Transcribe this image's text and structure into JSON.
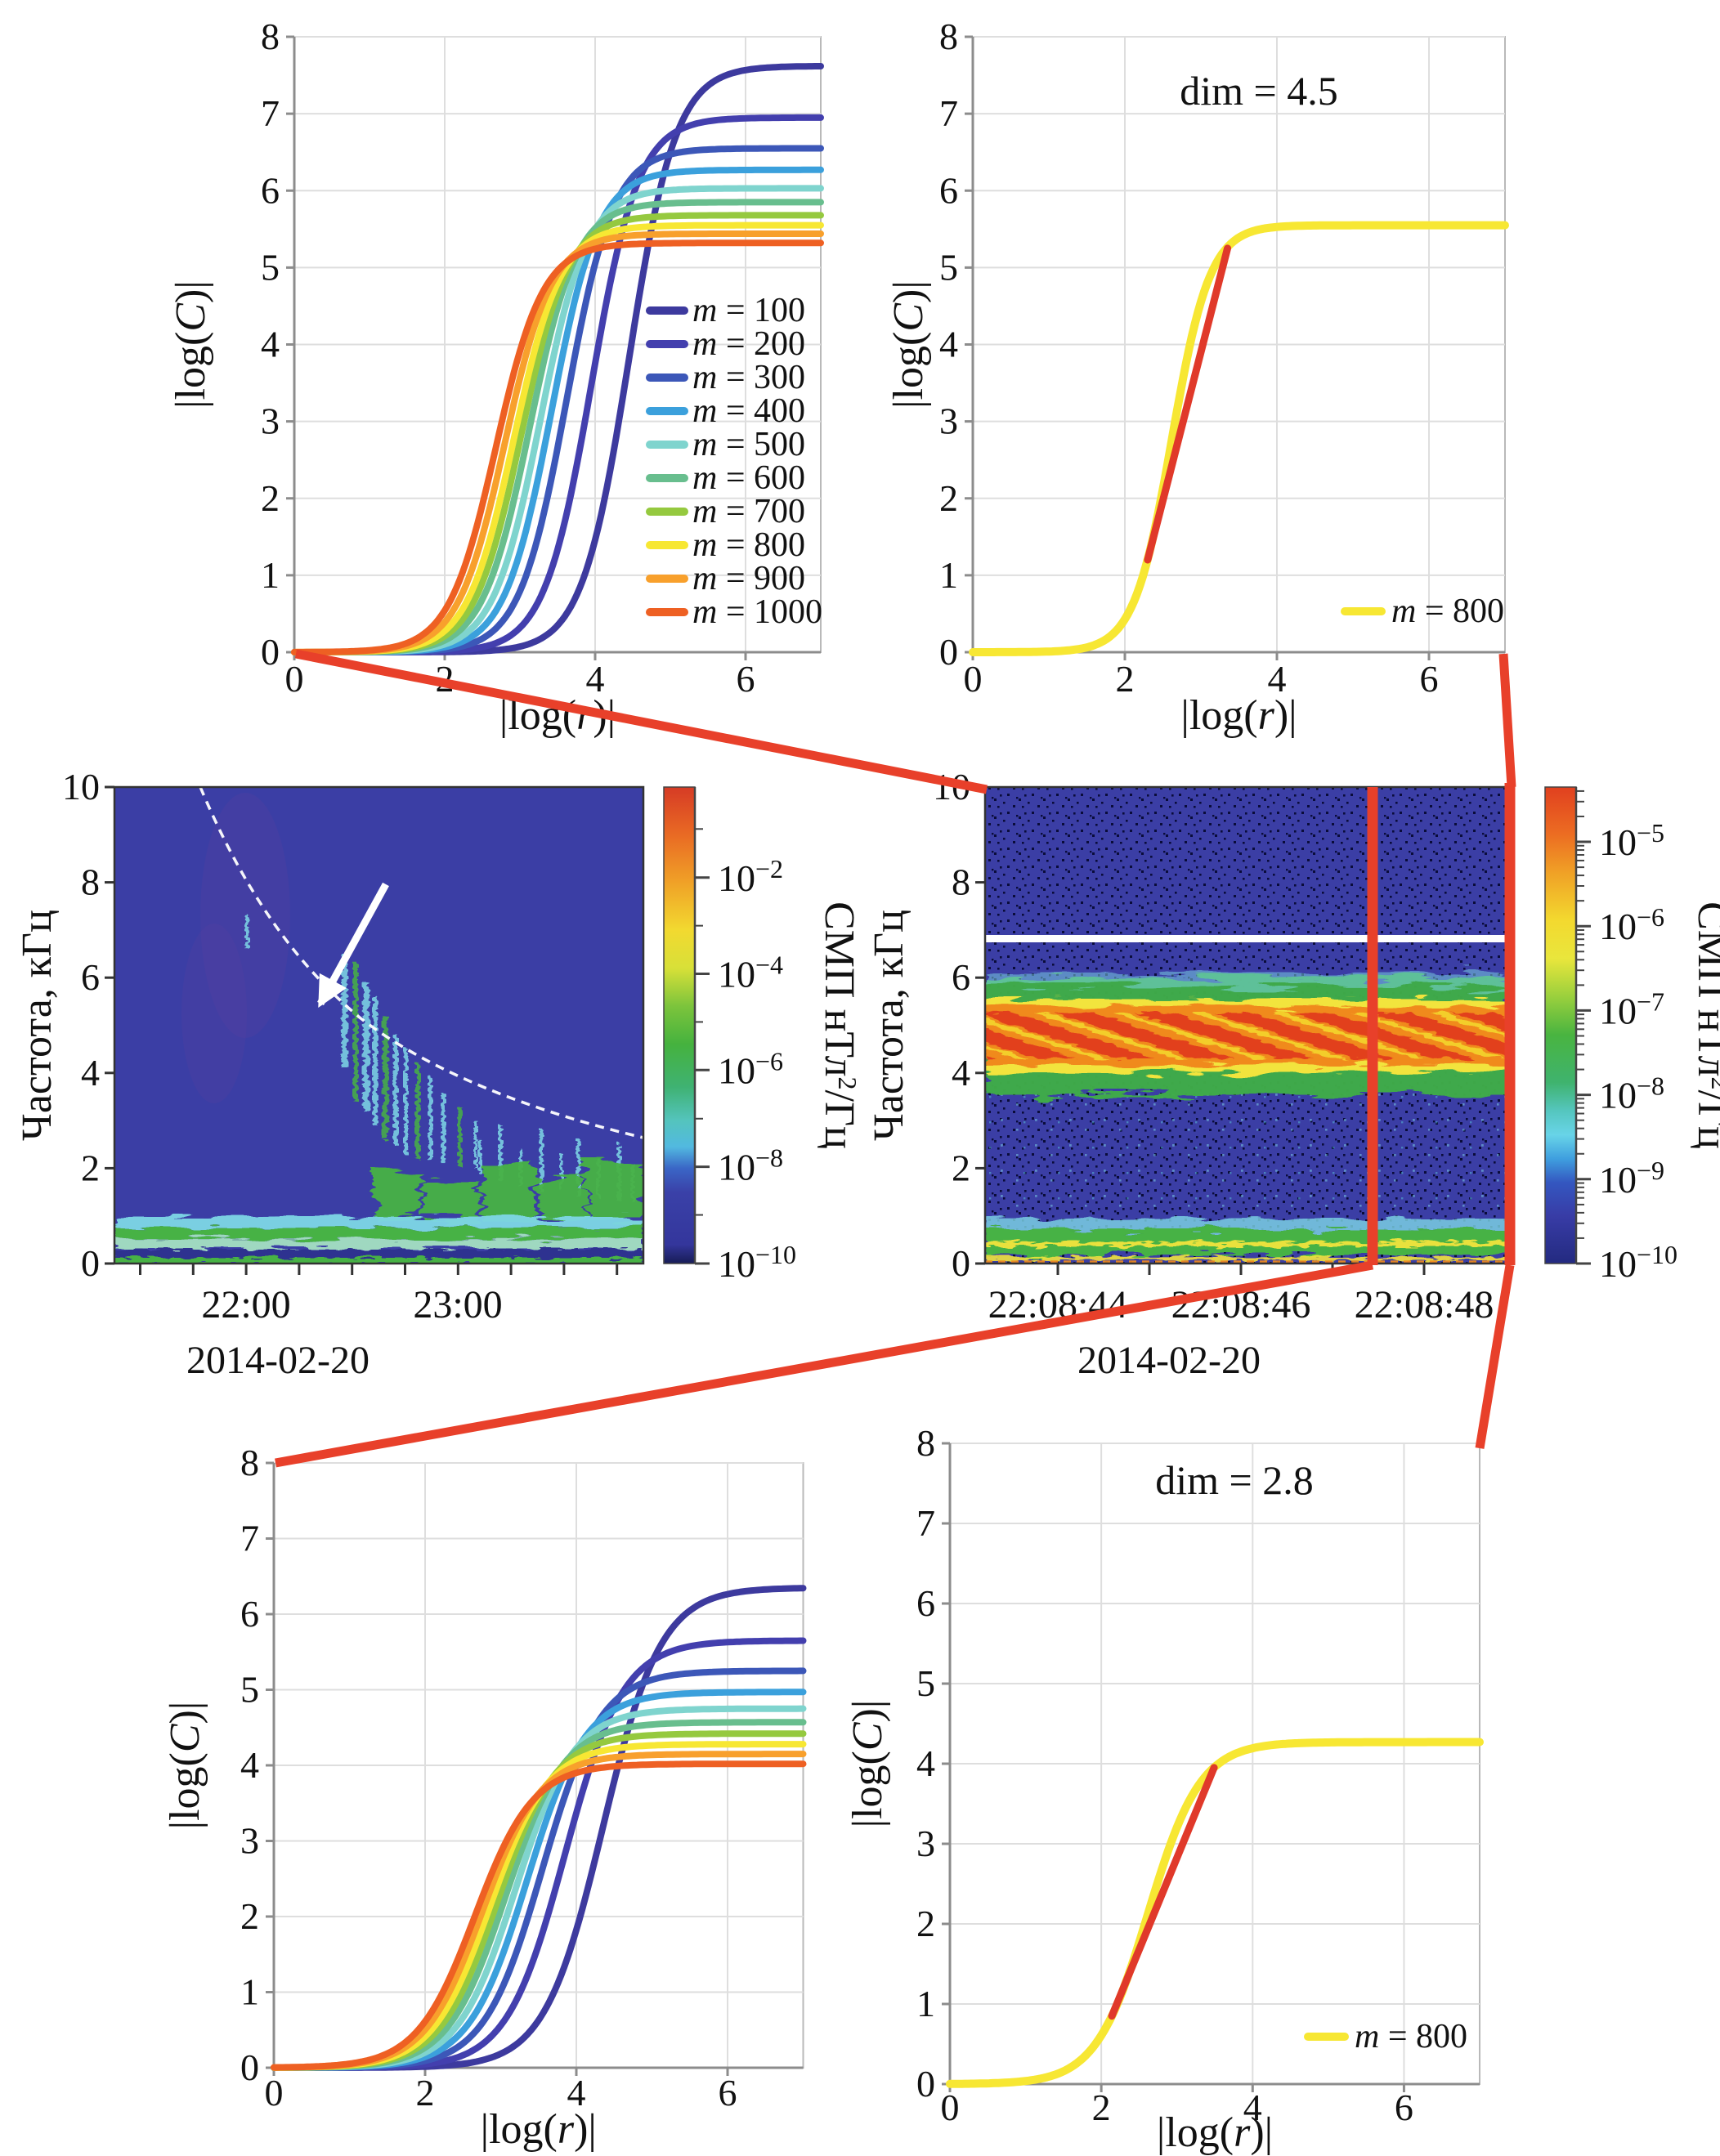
{
  "colors": {
    "connector_red": "#e8402a",
    "fit_red": "#e0392a",
    "grid": "#dedede",
    "frame": "#b9b9b9",
    "axis": "#8c8c8c",
    "spectro_frame": "#333333",
    "text": "#111111",
    "spectro_bg": "#3b3ea5",
    "band_green": "#46b244",
    "band_pale_green": "#9fd8c0",
    "band_cyan": "#7ed7e6",
    "band_yellow": "#f2e43c",
    "band_orange": "#f08a1e",
    "band_red": "#e2401c",
    "navy_stripe": "#2e3090",
    "white": "#ffffff"
  },
  "axis_labels": {
    "x": {
      "pre": "|log(",
      "var": "r",
      "post": ")|"
    },
    "y": {
      "pre": "|log(",
      "var": "C",
      "post": ")|"
    }
  },
  "chart_data": [
    {
      "id": "corr-all-m-top",
      "type": "line",
      "xlabel": "|log(r)|",
      "ylabel": "|log(C)|",
      "xlim": [
        0,
        7
      ],
      "ylim": [
        0,
        8
      ],
      "xticks": [
        "0",
        "2",
        "4",
        "6"
      ],
      "yticks": [
        "0",
        "1",
        "2",
        "3",
        "4",
        "5",
        "6",
        "7",
        "8"
      ],
      "legend": {
        "var": "m",
        "position": "right-middle"
      },
      "series": [
        {
          "m": 100,
          "rest": " = 100",
          "color": "#3d3a9e",
          "plateau": 7.62,
          "x0": 4.45,
          "k": 3.2
        },
        {
          "m": 200,
          "rest": " = 200",
          "color": "#433fae",
          "plateau": 6.95,
          "x0": 3.95,
          "k": 3.2
        },
        {
          "m": 300,
          "rest": " = 300",
          "color": "#3c57b8",
          "plateau": 6.55,
          "x0": 3.62,
          "k": 3.2
        },
        {
          "m": 400,
          "rest": " = 400",
          "color": "#3ba0dc",
          "plateau": 6.27,
          "x0": 3.42,
          "k": 3.2
        },
        {
          "m": 500,
          "rest": " = 500",
          "color": "#7fd4ce",
          "plateau": 6.03,
          "x0": 3.27,
          "k": 3.2
        },
        {
          "m": 600,
          "rest": " = 600",
          "color": "#68be8e",
          "plateau": 5.85,
          "x0": 3.13,
          "k": 3.2
        },
        {
          "m": 700,
          "rest": " = 700",
          "color": "#95c93f",
          "plateau": 5.68,
          "x0": 3.02,
          "k": 3.2
        },
        {
          "m": 800,
          "rest": " = 800",
          "color": "#f7e733",
          "plateau": 5.55,
          "x0": 2.92,
          "k": 3.2
        },
        {
          "m": 900,
          "rest": " = 900",
          "color": "#f8a02c",
          "plateau": 5.44,
          "x0": 2.8,
          "k": 3.2
        },
        {
          "m": 1000,
          "rest": " = 1000",
          "color": "#ee6023",
          "plateau": 5.32,
          "x0": 2.68,
          "k": 3.2
        }
      ]
    },
    {
      "id": "corr-m800-top",
      "type": "line",
      "annotation": "dim = 4.5",
      "xlabel": "|log(r)|",
      "ylabel": "|log(C)|",
      "xlim": [
        0,
        7
      ],
      "ylim": [
        0,
        8
      ],
      "xticks": [
        "0",
        "2",
        "4",
        "6"
      ],
      "yticks": [
        "0",
        "1",
        "2",
        "3",
        "4",
        "5",
        "6",
        "7",
        "8"
      ],
      "legend": {
        "var": "m",
        "position": "bottom-right"
      },
      "series": [
        {
          "m": 800,
          "rest": " = 800",
          "color": "#f7e733",
          "plateau": 5.55,
          "x0": 2.62,
          "k": 4.0
        }
      ],
      "fit": {
        "x1": 2.3,
        "y1": 1.2,
        "x2": 3.35,
        "y2": 5.25,
        "dim": 4.5,
        "color": "#e0392a"
      }
    },
    {
      "id": "spectrogram-overview",
      "type": "heatmap",
      "ylabel": "Частота, кГц",
      "ylim": [
        0,
        10
      ],
      "yticks": [
        "0",
        "2",
        "4",
        "6",
        "8",
        "10"
      ],
      "xtick_labels": [
        "22:00",
        "23:00"
      ],
      "date": "2014-02-20",
      "colorbar": {
        "base": "10",
        "exponents": [
          "−2",
          "−4",
          "−6",
          "−8",
          "−10"
        ],
        "title": {
          "pre": "СМП нТл",
          "sup": "2",
          "post": "/Гц"
        },
        "stops": [
          [
            0,
            "#d63b25"
          ],
          [
            0.1,
            "#e96a24"
          ],
          [
            0.2,
            "#f0a127"
          ],
          [
            0.3,
            "#f2d930"
          ],
          [
            0.38,
            "#d8e038"
          ],
          [
            0.46,
            "#7cc43c"
          ],
          [
            0.54,
            "#45b23e"
          ],
          [
            0.63,
            "#3fb273"
          ],
          [
            0.7,
            "#54c4bd"
          ],
          [
            0.755,
            "#52b9e0"
          ],
          [
            0.8,
            "#3a66c6"
          ],
          [
            0.85,
            "#3a41a8"
          ],
          [
            0.96,
            "#34369c"
          ],
          [
            1,
            "#171c55"
          ]
        ]
      }
    },
    {
      "id": "spectrogram-zoom",
      "type": "heatmap",
      "ylabel": "Частота, кГц",
      "ylim": [
        0,
        10
      ],
      "yticks": [
        "0",
        "2",
        "4",
        "6",
        "8",
        "10"
      ],
      "xtick_labels": [
        "22:08:44",
        "22:08:46",
        "22:08:48"
      ],
      "date": "2014-02-20",
      "colorbar": {
        "base": "10",
        "exponents": [
          "−5",
          "−6",
          "−7",
          "−8",
          "−9",
          "−10"
        ],
        "title": {
          "pre": "СМП нТл",
          "sup": "2",
          "post": "/Гц"
        },
        "stops": [
          [
            0,
            "#e1401f"
          ],
          [
            0.1,
            "#ec6d22"
          ],
          [
            0.18,
            "#f0a126"
          ],
          [
            0.28,
            "#f3d92f"
          ],
          [
            0.36,
            "#e9e63c"
          ],
          [
            0.44,
            "#9ad03d"
          ],
          [
            0.52,
            "#49b440"
          ],
          [
            0.62,
            "#3fb36e"
          ],
          [
            0.68,
            "#55c6bf"
          ],
          [
            0.73,
            "#68d4e8"
          ],
          [
            0.78,
            "#3f9fdf"
          ],
          [
            0.83,
            "#3457c0"
          ],
          [
            0.9,
            "#383ca6"
          ],
          [
            1,
            "#232a80"
          ]
        ]
      }
    },
    {
      "id": "corr-all-m-bottom",
      "type": "line",
      "xlabel": "|log(r)|",
      "ylabel": "|log(C)|",
      "xlim": [
        0,
        7
      ],
      "ylim": [
        0,
        8
      ],
      "xticks": [
        "0",
        "2",
        "4",
        "6"
      ],
      "yticks": [
        "0",
        "1",
        "2",
        "3",
        "4",
        "5",
        "6",
        "7",
        "8"
      ],
      "series": [
        {
          "m": 100,
          "rest": " = 100",
          "color": "#3d3a9e",
          "plateau": 6.35,
          "x0": 4.35,
          "k": 2.6
        },
        {
          "m": 200,
          "rest": " = 200",
          "color": "#433fae",
          "plateau": 5.65,
          "x0": 3.85,
          "k": 2.6
        },
        {
          "m": 300,
          "rest": " = 300",
          "color": "#3c57b8",
          "plateau": 5.25,
          "x0": 3.55,
          "k": 2.6
        },
        {
          "m": 400,
          "rest": " = 400",
          "color": "#3ba0dc",
          "plateau": 4.97,
          "x0": 3.35,
          "k": 2.6
        },
        {
          "m": 500,
          "rest": " = 500",
          "color": "#7fd4ce",
          "plateau": 4.75,
          "x0": 3.2,
          "k": 2.6
        },
        {
          "m": 600,
          "rest": " = 600",
          "color": "#68be8e",
          "plateau": 4.57,
          "x0": 3.07,
          "k": 2.6
        },
        {
          "m": 700,
          "rest": " = 700",
          "color": "#95c93f",
          "plateau": 4.42,
          "x0": 2.96,
          "k": 2.6
        },
        {
          "m": 800,
          "rest": " = 800",
          "color": "#f7e733",
          "plateau": 4.28,
          "x0": 2.86,
          "k": 2.6
        },
        {
          "m": 900,
          "rest": " = 900",
          "color": "#f8a02c",
          "plateau": 4.15,
          "x0": 2.76,
          "k": 2.6
        },
        {
          "m": 1000,
          "rest": " = 1000",
          "color": "#ee6023",
          "plateau": 4.02,
          "x0": 2.66,
          "k": 2.6
        }
      ]
    },
    {
      "id": "corr-m800-bottom",
      "type": "line",
      "annotation": "dim = 2.8",
      "xlabel": "|log(r)|",
      "ylabel": "|log(C)|",
      "xlim": [
        0,
        7
      ],
      "ylim": [
        0,
        8
      ],
      "xticks": [
        "0",
        "2",
        "4",
        "6"
      ],
      "yticks": [
        "0",
        "1",
        "2",
        "3",
        "4",
        "5",
        "6",
        "7",
        "8"
      ],
      "legend": {
        "var": "m",
        "position": "bottom-right"
      },
      "series": [
        {
          "m": 800,
          "rest": " = 800",
          "color": "#f7e733",
          "plateau": 4.27,
          "x0": 2.62,
          "k": 2.9
        }
      ],
      "fit": {
        "x1": 2.14,
        "y1": 0.85,
        "x2": 3.49,
        "y2": 3.95,
        "dim": 2.8,
        "color": "#e0392a"
      }
    }
  ]
}
